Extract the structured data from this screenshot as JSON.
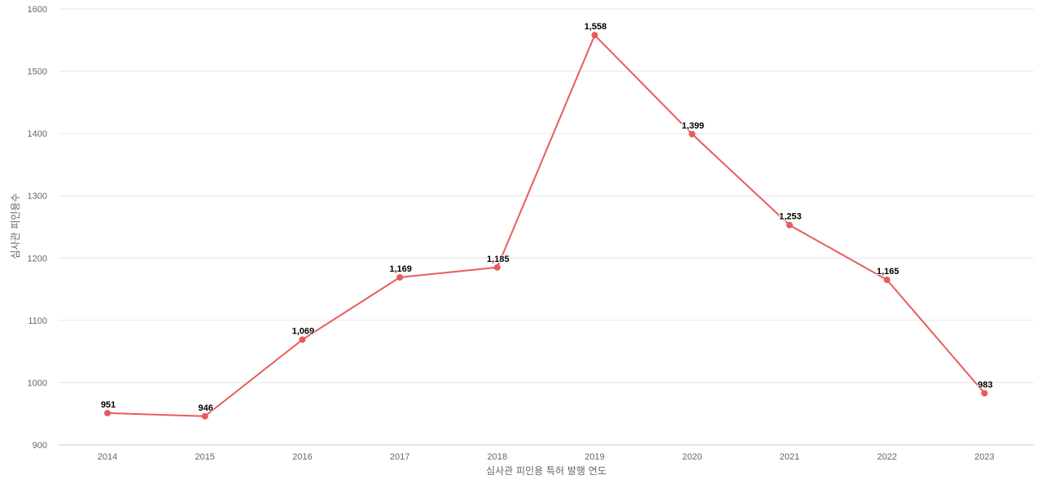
{
  "chart_data": {
    "type": "line",
    "xlabel": "심사관 피인용 특허 발행 연도",
    "ylabel": "심사관 피인용수",
    "categories": [
      "2014",
      "2015",
      "2016",
      "2017",
      "2018",
      "2019",
      "2020",
      "2021",
      "2022",
      "2023"
    ],
    "series": [
      {
        "values": [
          951,
          946,
          1069,
          1169,
          1185,
          1558,
          1399,
          1253,
          1165,
          983
        ],
        "labels": [
          "951",
          "946",
          "1,069",
          "1,169",
          "1,185",
          "1,558",
          "1,399",
          "1,253",
          "1,165",
          "983"
        ],
        "color": "#eb5a5a"
      }
    ],
    "ylim": [
      900,
      1600
    ],
    "yticks": [
      "900",
      "1000",
      "1100",
      "1200",
      "1300",
      "1400",
      "1500",
      "1600"
    ],
    "grid": true,
    "legend": "none",
    "colors": {
      "line": "#eb5a5a",
      "grid": "#e6e6e6",
      "tick_text": "#666666",
      "data_label": "#000000"
    }
  }
}
